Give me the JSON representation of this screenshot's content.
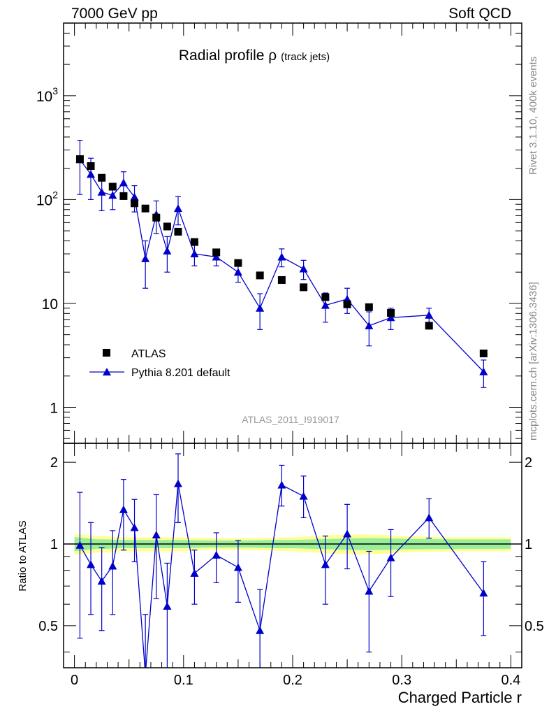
{
  "header": {
    "left": "7000 GeV pp",
    "right": "Soft QCD"
  },
  "side": {
    "rivet": "Rivet 3.1.10,  400k events",
    "source": "mcplots.cern.ch [arXiv:1306.3436]"
  },
  "chart_data": [
    {
      "type": "scatter",
      "panel": "main",
      "title": "Radial profile ρ",
      "title_suffix": "(track jets)",
      "watermark": "ATLAS_2011_I919017",
      "xlabel": "",
      "ylabel": "",
      "xlim": [
        -0.01,
        0.41
      ],
      "ylim": [
        0.45,
        5000
      ],
      "y_scale": "log",
      "y_tick_labels": [
        "1",
        "10",
        "10²",
        "10³"
      ],
      "legend_position": "bottom-left",
      "series": [
        {
          "name": "ATLAS",
          "marker": "square",
          "color": "#000000",
          "x": [
            0.005,
            0.015,
            0.025,
            0.035,
            0.045,
            0.055,
            0.065,
            0.075,
            0.085,
            0.095,
            0.11,
            0.13,
            0.15,
            0.17,
            0.19,
            0.21,
            0.23,
            0.25,
            0.27,
            0.29,
            0.325,
            0.375
          ],
          "y": [
            245,
            210,
            162,
            133,
            108,
            92,
            82,
            67,
            55,
            49,
            39,
            31,
            24.5,
            18.6,
            16.8,
            14.3,
            11.5,
            9.8,
            9.2,
            8.1,
            6.1,
            3.3
          ]
        },
        {
          "name": "Pythia 8.201 default",
          "marker": "triangle",
          "color": "#0000cc",
          "x": [
            0.005,
            0.015,
            0.025,
            0.035,
            0.045,
            0.055,
            0.065,
            0.075,
            0.085,
            0.095,
            0.11,
            0.13,
            0.15,
            0.17,
            0.19,
            0.21,
            0.23,
            0.25,
            0.27,
            0.29,
            0.325,
            0.375
          ],
          "y": [
            242,
            175,
            118,
            110,
            145,
            106,
            27,
            72,
            32,
            82,
            30,
            28,
            20,
            9,
            28,
            21.5,
            9.6,
            11,
            6.1,
            7.3,
            7.7,
            2.2
          ],
          "yerr": [
            130,
            75,
            40,
            30,
            40,
            30,
            13,
            25,
            12,
            25,
            7,
            5,
            4,
            3.4,
            5.5,
            4.5,
            3,
            3,
            2.2,
            1.7,
            1.3,
            0.65
          ]
        }
      ]
    },
    {
      "type": "line",
      "panel": "ratio",
      "xlabel": "Charged Particle r",
      "ylabel": "Ratio to ATLAS",
      "xlim": [
        -0.01,
        0.41
      ],
      "ylim": [
        0.35,
        2.35
      ],
      "y_scale": "log",
      "x_tick_labels": [
        "0",
        "0.1",
        "0.2",
        "0.3",
        "0.4"
      ],
      "y_tick_labels": [
        "0.5",
        "1",
        "2"
      ],
      "reference_line": 1,
      "band": {
        "x": [
          0.0,
          0.01,
          0.02,
          0.03,
          0.04,
          0.05,
          0.06,
          0.07,
          0.08,
          0.09,
          0.1,
          0.12,
          0.14,
          0.16,
          0.18,
          0.2,
          0.22,
          0.24,
          0.26,
          0.28,
          0.3,
          0.35,
          0.4
        ],
        "green_halfwidth": [
          0.06,
          0.05,
          0.04,
          0.04,
          0.035,
          0.035,
          0.035,
          0.035,
          0.035,
          0.035,
          0.035,
          0.03,
          0.03,
          0.03,
          0.035,
          0.035,
          0.04,
          0.045,
          0.05,
          0.05,
          0.045,
          0.04,
          0.04
        ],
        "yellow_halfwidth": [
          0.09,
          0.08,
          0.07,
          0.07,
          0.06,
          0.06,
          0.06,
          0.06,
          0.06,
          0.06,
          0.06,
          0.05,
          0.05,
          0.05,
          0.055,
          0.06,
          0.07,
          0.08,
          0.085,
          0.08,
          0.07,
          0.06,
          0.06
        ]
      },
      "series": [
        {
          "name": "Pythia 8.201 default",
          "color": "#0000cc",
          "x": [
            0.005,
            0.015,
            0.025,
            0.035,
            0.045,
            0.055,
            0.065,
            0.075,
            0.085,
            0.095,
            0.11,
            0.13,
            0.15,
            0.17,
            0.19,
            0.21,
            0.23,
            0.25,
            0.27,
            0.29,
            0.325,
            0.375
          ],
          "y": [
            0.99,
            0.84,
            0.73,
            0.83,
            1.34,
            1.15,
            0.33,
            1.08,
            0.59,
            1.67,
            0.78,
            0.91,
            0.82,
            0.48,
            1.65,
            1.5,
            0.84,
            1.09,
            0.67,
            0.89,
            1.25,
            0.66
          ],
          "ylow": [
            0.45,
            0.55,
            0.48,
            0.55,
            0.95,
            0.86,
            0.1,
            0.63,
            0.3,
            1.2,
            0.6,
            0.72,
            0.61,
            0.3,
            1.38,
            1.25,
            0.6,
            0.81,
            0.4,
            0.64,
            1.05,
            0.46
          ],
          "yhigh": [
            1.55,
            1.2,
            0.97,
            1.12,
            1.73,
            1.46,
            0.55,
            1.52,
            0.85,
            2.15,
            0.95,
            1.1,
            1.03,
            0.68,
            1.95,
            1.78,
            1.07,
            1.4,
            0.94,
            1.13,
            1.47,
            0.86
          ]
        }
      ]
    }
  ]
}
